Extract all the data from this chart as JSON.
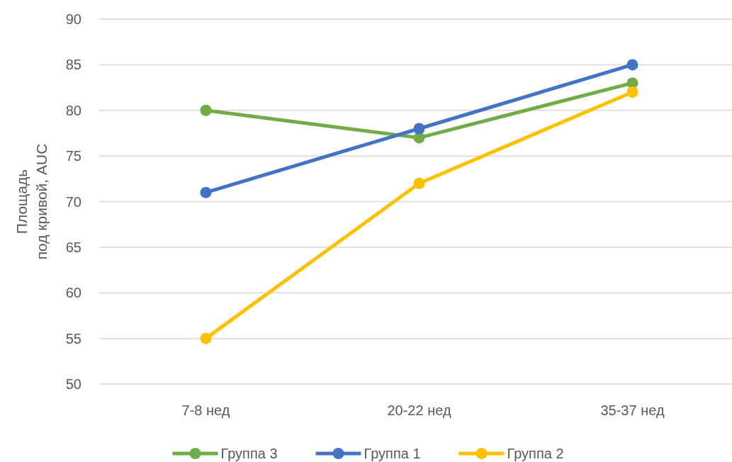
{
  "chart_data": {
    "type": "line",
    "ylabel": "Площадь под кривой, AUC",
    "categories": [
      "7-8 нед",
      "20-22 нед",
      "35-37 нед"
    ],
    "series": [
      {
        "name": "Группа 3",
        "color": "#70ad47",
        "values": [
          80,
          77,
          83
        ]
      },
      {
        "name": "Группа 1",
        "color": "#4472c4",
        "values": [
          71,
          78,
          85
        ]
      },
      {
        "name": "Группа 2",
        "color": "#ffc000",
        "values": [
          55,
          72,
          82
        ]
      }
    ],
    "ylim": [
      50,
      90
    ],
    "yticks": [
      50,
      55,
      60,
      65,
      70,
      75,
      80,
      85,
      90
    ],
    "grid": "y",
    "legend": "bottom",
    "marker": "circle",
    "line_style": "solid"
  }
}
